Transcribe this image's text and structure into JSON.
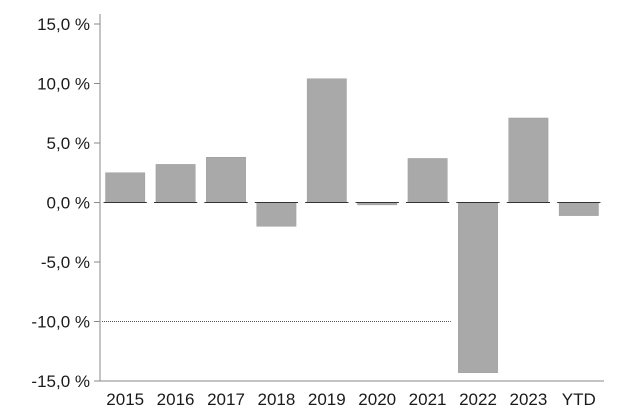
{
  "chart_data": {
    "type": "bar",
    "categories": [
      "2015",
      "2016",
      "2017",
      "2018",
      "2019",
      "2020",
      "2021",
      "2022",
      "2023",
      "YTD"
    ],
    "values": [
      2.5,
      3.2,
      3.8,
      -2.0,
      10.4,
      -0.2,
      3.7,
      -14.3,
      7.1,
      -1.1
    ],
    "yticks": [
      15,
      10,
      5,
      0,
      -5,
      -10,
      -15
    ],
    "ytick_labels": [
      "15,0 %",
      "10,0 %",
      "5,0 %",
      "0,0 %",
      "-5,0 %",
      "-10,0 %",
      "-15,0 %"
    ],
    "ylim": [
      -15,
      15
    ],
    "title": "",
    "xlabel": "",
    "ylabel": "",
    "grid": false,
    "legend": "none",
    "colors": {
      "bar": "#a9a9a9",
      "bar_stroke": "#9a9a9a",
      "axis": "#8a8a8a",
      "zero_line": "#333333",
      "reference_line": "#555555"
    }
  }
}
